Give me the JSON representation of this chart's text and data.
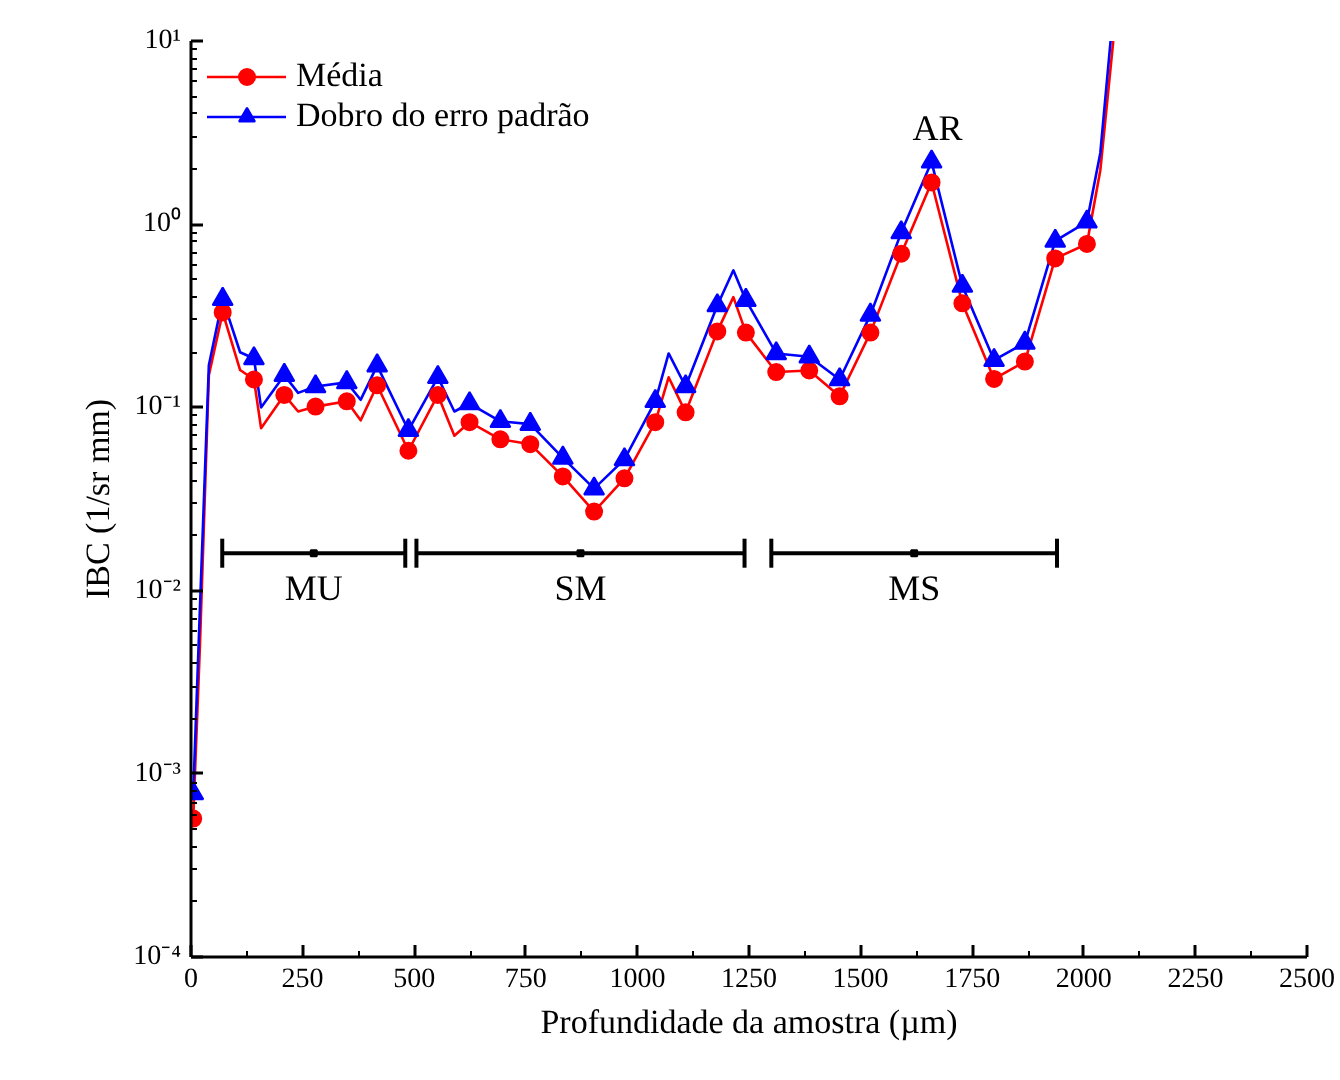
{
  "chart_data": {
    "type": "line",
    "xlabel": "Profundidade da amostra (µm)",
    "ylabel": "IBC (1/sr mm)",
    "log": "y",
    "grid": false,
    "legend": "top left",
    "xlim": [
      0,
      2500
    ],
    "xticks": [
      0,
      250,
      500,
      750,
      1000,
      1250,
      1500,
      1750,
      2000,
      2250,
      2500
    ],
    "ylim": [
      0.0001,
      10
    ],
    "yticks": [
      {
        "value": 0.0001,
        "label": "10⁻⁴"
      },
      {
        "value": 0.001,
        "label": "10⁻³"
      },
      {
        "value": 0.01,
        "label": "10⁻²"
      },
      {
        "value": 0.1,
        "label": "10⁻¹"
      },
      {
        "value": 1,
        "label": "10⁰"
      },
      {
        "value": 10,
        "label": "10¹"
      }
    ],
    "series": [
      {
        "color": "#ff0000",
        "marker": "none",
        "x": [
          5,
          20,
          40,
          71,
          110,
          141,
          157,
          209,
          240,
          279,
          349,
          380,
          417,
          487,
          553,
          590,
          624,
          693,
          760,
          833,
          903,
          971,
          1040,
          1070,
          1108,
          1179,
          1215,
          1243,
          1311,
          1385,
          1453,
          1522,
          1591,
          1659,
          1728,
          1799,
          1868,
          1936,
          2007,
          2037,
          2066
        ],
        "values": [
          0.00057,
          0.005,
          0.15,
          0.33,
          0.16,
          0.142,
          0.077,
          0.117,
          0.095,
          0.101,
          0.108,
          0.085,
          0.132,
          0.058,
          0.117,
          0.07,
          0.083,
          0.067,
          0.063,
          0.042,
          0.027,
          0.041,
          0.083,
          0.146,
          0.094,
          0.26,
          0.4,
          0.256,
          0.156,
          0.159,
          0.115,
          0.256,
          0.69,
          1.69,
          0.37,
          0.143,
          0.178,
          0.65,
          0.78,
          1.97,
          10
        ]
      },
      {
        "color": "#0000ff",
        "marker": "none",
        "x": [
          5,
          20,
          40,
          71,
          110,
          141,
          157,
          209,
          240,
          279,
          349,
          380,
          417,
          487,
          553,
          590,
          624,
          693,
          760,
          833,
          903,
          971,
          1040,
          1070,
          1108,
          1179,
          1215,
          1243,
          1311,
          1385,
          1453,
          1522,
          1591,
          1659,
          1728,
          1799,
          1868,
          1936,
          2007,
          2037,
          2060
        ],
        "values": [
          0.00078,
          0.008,
          0.17,
          0.39,
          0.2,
          0.185,
          0.1,
          0.15,
          0.12,
          0.13,
          0.137,
          0.11,
          0.169,
          0.075,
          0.146,
          0.095,
          0.105,
          0.084,
          0.081,
          0.053,
          0.036,
          0.052,
          0.108,
          0.197,
          0.13,
          0.36,
          0.56,
          0.385,
          0.197,
          0.189,
          0.142,
          0.32,
          0.9,
          2.19,
          0.46,
          0.181,
          0.225,
          0.81,
          1.03,
          2.45,
          10
        ]
      },
      {
        "type": "scatter",
        "color": "#000000",
        "marker": "square",
        "x": [
          275,
          872.5,
          1620
        ],
        "values": [
          0.016,
          0.016,
          0.016
        ],
        "xerrors": [
          [
            70,
            480
          ],
          [
            505,
            1240
          ],
          [
            1300,
            1940
          ]
        ]
      },
      {
        "type": "scatter",
        "name": "Média",
        "color": "#ff0000",
        "marker": "circle",
        "x": [
          5,
          71,
          141,
          209,
          279,
          349,
          417,
          487,
          553,
          624,
          693,
          760,
          833,
          903,
          971,
          1040,
          1108,
          1179,
          1243,
          1311,
          1385,
          1453,
          1522,
          1591,
          1659,
          1728,
          1799,
          1868,
          1936,
          2007
        ],
        "values": [
          0.00057,
          0.33,
          0.142,
          0.117,
          0.101,
          0.108,
          0.132,
          0.058,
          0.117,
          0.083,
          0.067,
          0.063,
          0.042,
          0.027,
          0.041,
          0.083,
          0.094,
          0.26,
          0.256,
          0.156,
          0.159,
          0.115,
          0.256,
          0.69,
          1.69,
          0.37,
          0.143,
          0.178,
          0.65,
          0.78
        ]
      },
      {
        "type": "scatter",
        "name": "Dobro do erro padrão",
        "color": "#0000ff",
        "marker": "triangle",
        "x": [
          5,
          71,
          141,
          209,
          279,
          349,
          417,
          487,
          553,
          624,
          693,
          760,
          833,
          903,
          971,
          1040,
          1108,
          1179,
          1243,
          1311,
          1385,
          1453,
          1522,
          1591,
          1659,
          1728,
          1799,
          1868,
          1936,
          2007
        ],
        "values": [
          0.00078,
          0.39,
          0.185,
          0.15,
          0.13,
          0.137,
          0.169,
          0.075,
          0.146,
          0.105,
          0.084,
          0.081,
          0.053,
          0.036,
          0.052,
          0.108,
          0.13,
          0.36,
          0.385,
          0.197,
          0.189,
          0.142,
          0.32,
          0.9,
          2.19,
          0.46,
          0.181,
          0.225,
          0.81,
          1.03
        ]
      }
    ],
    "annotations": [
      "MU",
      "SM",
      "MS",
      "AR"
    ]
  }
}
